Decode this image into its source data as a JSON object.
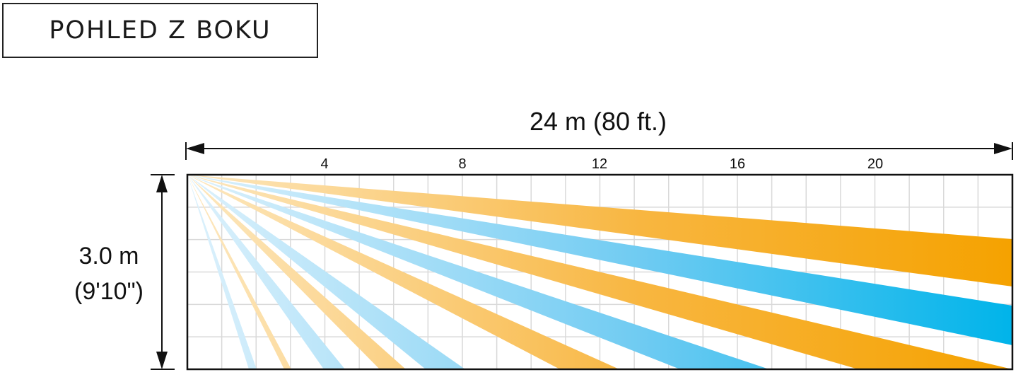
{
  "title": "POHLED Z BOKU",
  "length_label": "24 m (80 ft.)",
  "height_label_line1": "3.0 m",
  "height_label_line2": "(9'10\")",
  "ticks": [
    "4",
    "8",
    "12",
    "16",
    "20"
  ],
  "colors": {
    "orange": "#F5A200",
    "orange_light": "#FDE2B2",
    "blue": "#00B4EA",
    "blue_light": "#CBE9FA",
    "grid": "#D9D9D9",
    "frame": "#111111"
  }
}
